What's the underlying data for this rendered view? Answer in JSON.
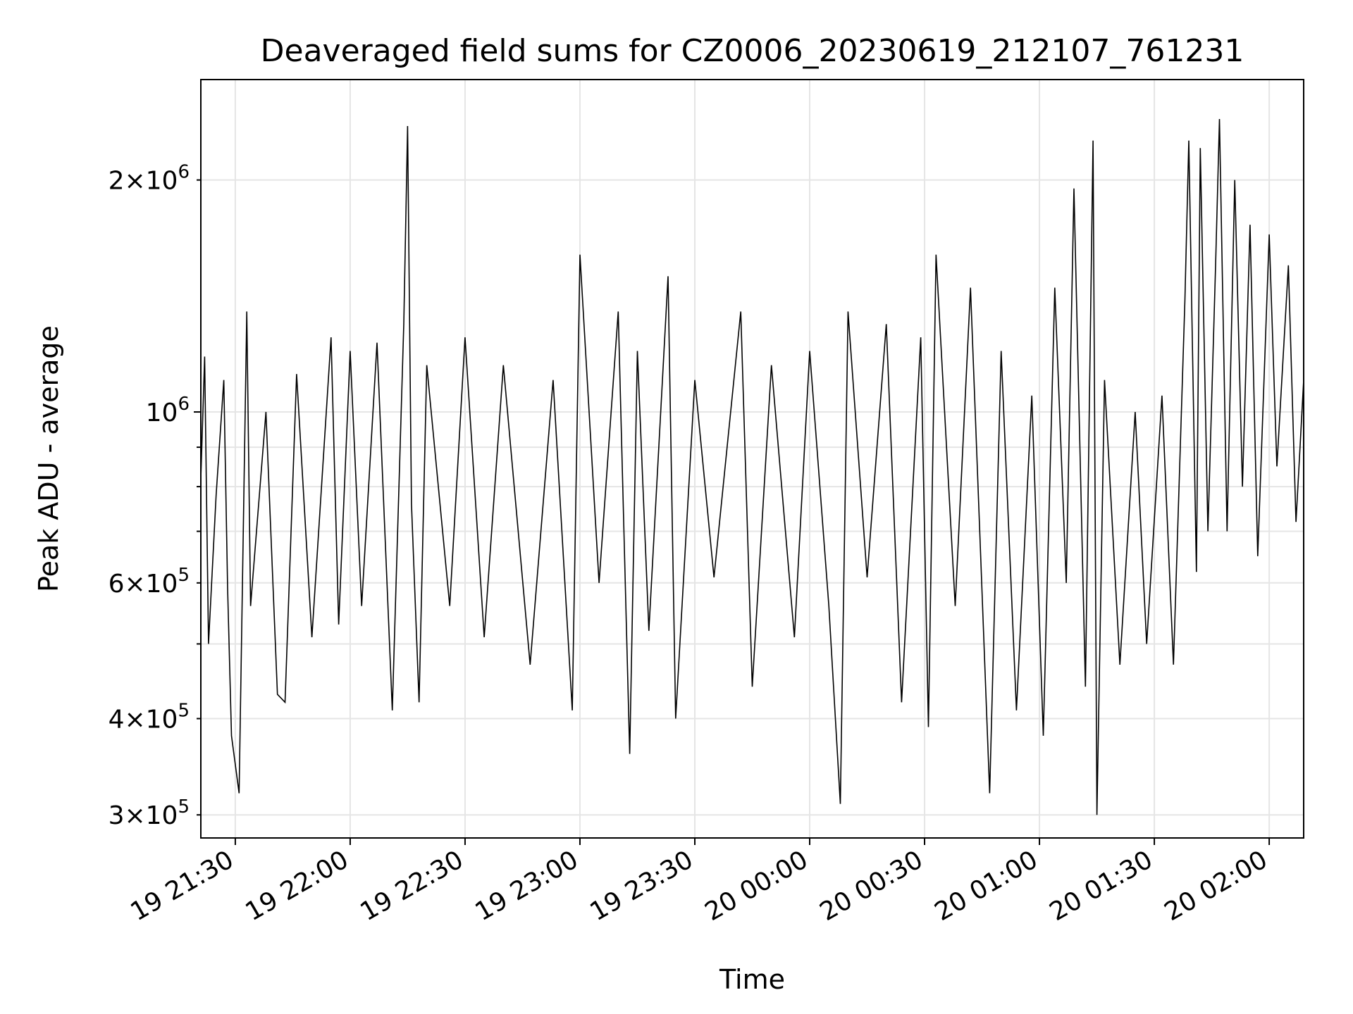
{
  "chart_data": {
    "type": "line",
    "title": "Deaveraged field sums for CZ0006_20230619_212107_761231",
    "xlabel": "Time",
    "ylabel": "Peak ADU - average",
    "y_scale": "log",
    "ylim": [
      280000,
      2700000
    ],
    "xlim": [
      "2023-06-19T21:21:00",
      "2023-06-20T02:09:00"
    ],
    "grid": true,
    "line_color": "#000000",
    "grid_color": "#e5e5e5",
    "x_ticks": [
      {
        "value": "2023-06-19T21:30:00",
        "label": "19 21:30"
      },
      {
        "value": "2023-06-19T22:00:00",
        "label": "19 22:00"
      },
      {
        "value": "2023-06-19T22:30:00",
        "label": "19 22:30"
      },
      {
        "value": "2023-06-19T23:00:00",
        "label": "19 23:00"
      },
      {
        "value": "2023-06-19T23:30:00",
        "label": "19 23:30"
      },
      {
        "value": "2023-06-20T00:00:00",
        "label": "20 00:00"
      },
      {
        "value": "2023-06-20T00:30:00",
        "label": "20 00:30"
      },
      {
        "value": "2023-06-20T01:00:00",
        "label": "20 01:00"
      },
      {
        "value": "2023-06-20T01:30:00",
        "label": "20 01:30"
      },
      {
        "value": "2023-06-20T02:00:00",
        "label": "20 02:00"
      }
    ],
    "y_ticks_major": [
      {
        "value": 1000000,
        "base": "10",
        "exp": "6"
      }
    ],
    "y_ticks_minor": [
      {
        "value": 300000,
        "mant": "3",
        "exp": "5"
      },
      {
        "value": 400000,
        "mant": "4",
        "exp": "5"
      },
      {
        "value": 600000,
        "mant": "6",
        "exp": "5"
      },
      {
        "value": 2000000,
        "mant": "2",
        "exp": "6"
      }
    ],
    "y_minor_unlabeled": [
      500000,
      700000,
      800000,
      900000
    ],
    "series": [
      {
        "values": [
          [
            "2023-06-19T21:21:00",
            820000
          ],
          [
            "2023-06-19T21:22:00",
            1180000
          ],
          [
            "2023-06-19T21:23:00",
            500000
          ],
          [
            "2023-06-19T21:25:00",
            780000
          ],
          [
            "2023-06-19T21:27:00",
            1100000
          ],
          [
            "2023-06-19T21:28:00",
            590000
          ],
          [
            "2023-06-19T21:29:00",
            380000
          ],
          [
            "2023-06-19T21:31:00",
            320000
          ],
          [
            "2023-06-19T21:33:00",
            1350000
          ],
          [
            "2023-06-19T21:34:00",
            560000
          ],
          [
            "2023-06-19T21:38:00",
            1000000
          ],
          [
            "2023-06-19T21:41:00",
            430000
          ],
          [
            "2023-06-19T21:43:00",
            420000
          ],
          [
            "2023-06-19T21:46:00",
            1120000
          ],
          [
            "2023-06-19T21:50:00",
            510000
          ],
          [
            "2023-06-19T21:55:00",
            1250000
          ],
          [
            "2023-06-19T21:57:00",
            530000
          ],
          [
            "2023-06-19T22:00:00",
            1200000
          ],
          [
            "2023-06-19T22:03:00",
            560000
          ],
          [
            "2023-06-19T22:07:00",
            1230000
          ],
          [
            "2023-06-19T22:11:00",
            410000
          ],
          [
            "2023-06-19T22:14:00",
            1300000
          ],
          [
            "2023-06-19T22:15:00",
            2350000
          ],
          [
            "2023-06-19T22:16:00",
            760000
          ],
          [
            "2023-06-19T22:18:00",
            420000
          ],
          [
            "2023-06-19T22:20:00",
            1150000
          ],
          [
            "2023-06-19T22:26:00",
            560000
          ],
          [
            "2023-06-19T22:30:00",
            1250000
          ],
          [
            "2023-06-19T22:35:00",
            510000
          ],
          [
            "2023-06-19T22:40:00",
            1150000
          ],
          [
            "2023-06-19T22:47:00",
            470000
          ],
          [
            "2023-06-19T22:53:00",
            1100000
          ],
          [
            "2023-06-19T22:58:00",
            410000
          ],
          [
            "2023-06-19T23:00:00",
            1600000
          ],
          [
            "2023-06-19T23:05:00",
            600000
          ],
          [
            "2023-06-19T23:10:00",
            1350000
          ],
          [
            "2023-06-19T23:13:00",
            360000
          ],
          [
            "2023-06-19T23:15:00",
            1200000
          ],
          [
            "2023-06-19T23:18:00",
            520000
          ],
          [
            "2023-06-19T23:23:00",
            1500000
          ],
          [
            "2023-06-19T23:25:00",
            400000
          ],
          [
            "2023-06-19T23:30:00",
            1100000
          ],
          [
            "2023-06-19T23:35:00",
            610000
          ],
          [
            "2023-06-19T23:42:00",
            1350000
          ],
          [
            "2023-06-19T23:45:00",
            440000
          ],
          [
            "2023-06-19T23:50:00",
            1150000
          ],
          [
            "2023-06-19T23:56:00",
            510000
          ],
          [
            "2023-06-20T00:00:00",
            1200000
          ],
          [
            "2023-06-20T00:05:00",
            560000
          ],
          [
            "2023-06-20T00:08:00",
            310000
          ],
          [
            "2023-06-20T00:10:00",
            1350000
          ],
          [
            "2023-06-20T00:15:00",
            610000
          ],
          [
            "2023-06-20T00:20:00",
            1300000
          ],
          [
            "2023-06-20T00:24:00",
            420000
          ],
          [
            "2023-06-20T00:29:00",
            1250000
          ],
          [
            "2023-06-20T00:31:00",
            390000
          ],
          [
            "2023-06-20T00:33:00",
            1600000
          ],
          [
            "2023-06-20T00:38:00",
            560000
          ],
          [
            "2023-06-20T00:42:00",
            1450000
          ],
          [
            "2023-06-20T00:47:00",
            320000
          ],
          [
            "2023-06-20T00:50:00",
            1200000
          ],
          [
            "2023-06-20T00:54:00",
            410000
          ],
          [
            "2023-06-20T00:58:00",
            1050000
          ],
          [
            "2023-06-20T01:01:00",
            380000
          ],
          [
            "2023-06-20T01:04:00",
            1450000
          ],
          [
            "2023-06-20T01:07:00",
            600000
          ],
          [
            "2023-06-20T01:09:00",
            1950000
          ],
          [
            "2023-06-20T01:12:00",
            440000
          ],
          [
            "2023-06-20T01:14:00",
            2250000
          ],
          [
            "2023-06-20T01:15:00",
            300000
          ],
          [
            "2023-06-20T01:17:00",
            1100000
          ],
          [
            "2023-06-20T01:21:00",
            470000
          ],
          [
            "2023-06-20T01:25:00",
            1000000
          ],
          [
            "2023-06-20T01:28:00",
            500000
          ],
          [
            "2023-06-20T01:32:00",
            1050000
          ],
          [
            "2023-06-20T01:35:00",
            470000
          ],
          [
            "2023-06-20T01:38:00",
            1400000
          ],
          [
            "2023-06-20T01:39:00",
            2250000
          ],
          [
            "2023-06-20T01:41:00",
            620000
          ],
          [
            "2023-06-20T01:42:00",
            2200000
          ],
          [
            "2023-06-20T01:44:00",
            700000
          ],
          [
            "2023-06-20T01:46:00",
            1550000
          ],
          [
            "2023-06-20T01:47:00",
            2400000
          ],
          [
            "2023-06-20T01:49:00",
            700000
          ],
          [
            "2023-06-20T01:51:00",
            2000000
          ],
          [
            "2023-06-20T01:53:00",
            800000
          ],
          [
            "2023-06-20T01:55:00",
            1750000
          ],
          [
            "2023-06-20T01:57:00",
            650000
          ],
          [
            "2023-06-20T02:00:00",
            1700000
          ],
          [
            "2023-06-20T02:02:00",
            850000
          ],
          [
            "2023-06-20T02:05:00",
            1550000
          ],
          [
            "2023-06-20T02:07:00",
            720000
          ],
          [
            "2023-06-20T02:09:00",
            1100000
          ]
        ]
      }
    ]
  }
}
